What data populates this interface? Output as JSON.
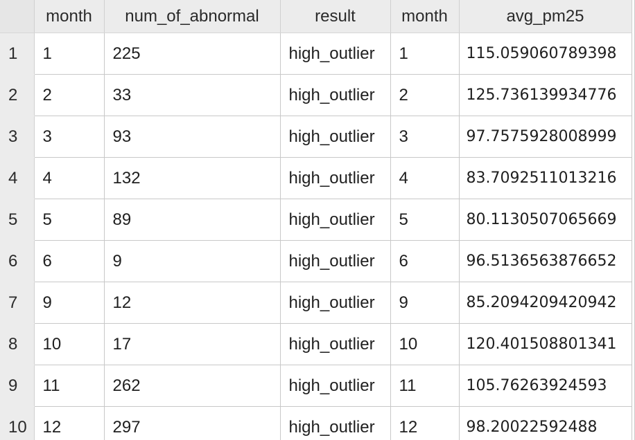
{
  "columns": [
    "month",
    "num_of_abnormal",
    "result",
    "month",
    "avg_pm25"
  ],
  "rows": [
    {
      "index": "1",
      "month": "1",
      "num_of_abnormal": "225",
      "result": "high_outlier",
      "month_2": "1",
      "avg_pm25": "115.059060789398"
    },
    {
      "index": "2",
      "month": "2",
      "num_of_abnormal": "33",
      "result": "high_outlier",
      "month_2": "2",
      "avg_pm25": "125.736139934776"
    },
    {
      "index": "3",
      "month": "3",
      "num_of_abnormal": "93",
      "result": "high_outlier",
      "month_2": "3",
      "avg_pm25": "97.7575928008999"
    },
    {
      "index": "4",
      "month": "4",
      "num_of_abnormal": "132",
      "result": "high_outlier",
      "month_2": "4",
      "avg_pm25": "83.7092511013216"
    },
    {
      "index": "5",
      "month": "5",
      "num_of_abnormal": "89",
      "result": "high_outlier",
      "month_2": "5",
      "avg_pm25": "80.1130507065669"
    },
    {
      "index": "6",
      "month": "6",
      "num_of_abnormal": "9",
      "result": "high_outlier",
      "month_2": "6",
      "avg_pm25": "96.5136563876652"
    },
    {
      "index": "7",
      "month": "9",
      "num_of_abnormal": "12",
      "result": "high_outlier",
      "month_2": "9",
      "avg_pm25": "85.2094209420942"
    },
    {
      "index": "8",
      "month": "10",
      "num_of_abnormal": "17",
      "result": "high_outlier",
      "month_2": "10",
      "avg_pm25": "120.401508801341"
    },
    {
      "index": "9",
      "month": "11",
      "num_of_abnormal": "262",
      "result": "high_outlier",
      "month_2": "11",
      "avg_pm25": "105.76263924593"
    },
    {
      "index": "10",
      "month": "12",
      "num_of_abnormal": "297",
      "result": "high_outlier",
      "month_2": "12",
      "avg_pm25": "98.20022592488"
    }
  ]
}
